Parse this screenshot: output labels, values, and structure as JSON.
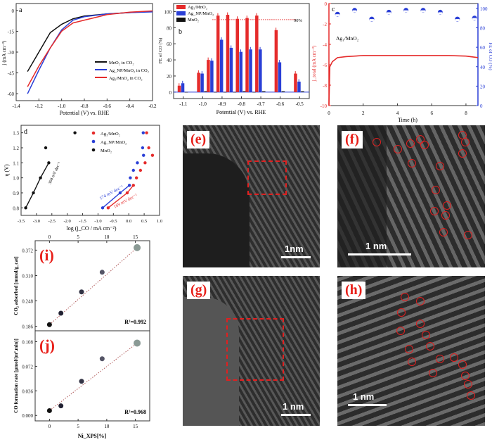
{
  "colors": {
    "ag1": "#e52b2b",
    "agnp": "#2a3fd6",
    "mno2": "#111111",
    "panel_label": "#e8201a"
  },
  "chart_data": [
    {
      "panel": "a",
      "type": "line",
      "xlabel": "Potential (V) vs. RHE",
      "ylabel": "j (mA cm⁻²)",
      "xlim": [
        -1.4,
        -0.2
      ],
      "ylim": [
        -65,
        5
      ],
      "xticks": [
        "-1.4",
        "-1.2",
        "-1.0",
        "-0.8",
        "-0.6",
        "-0.4",
        "-0.2"
      ],
      "yticks": [
        "0",
        "-15",
        "-30",
        "-45",
        "-60"
      ],
      "legend": "bottom-right",
      "series": [
        {
          "name": "MnO₂ in CO₂",
          "color": "#111111",
          "x": [
            -1.3,
            -1.2,
            -1.1,
            -1.0,
            -0.9,
            -0.8,
            -0.6,
            -0.4,
            -0.2
          ],
          "y": [
            -44,
            -30,
            -16,
            -10,
            -6,
            -4,
            -2.5,
            -1.5,
            -0.5
          ]
        },
        {
          "name": "Ag_NP/MnO₂ in CO₂",
          "color": "#2a3fd6",
          "x": [
            -1.3,
            -1.2,
            -1.1,
            -1.0,
            -0.9,
            -0.8,
            -0.6,
            -0.4,
            -0.2
          ],
          "y": [
            -60,
            -43,
            -27,
            -14,
            -7,
            -4.5,
            -2.5,
            -1.5,
            -1
          ]
        },
        {
          "name": "Ag₁/MnO₂ in CO₂",
          "color": "#e52b2b",
          "x": [
            -1.3,
            -1.2,
            -1.1,
            -1.0,
            -0.9,
            -0.8,
            -0.7,
            -0.6,
            -0.4,
            -0.2
          ],
          "y": [
            -55,
            -40,
            -27,
            -15,
            -9,
            -7,
            -5,
            -3,
            -1.2,
            -0.3
          ]
        }
      ]
    },
    {
      "panel": "b",
      "type": "bar",
      "xlabel": "Potential (V) vs. RHE",
      "ylabel": "FE of CO (%)",
      "xlim": [
        -1.15,
        -0.45
      ],
      "ylim": [
        -8,
        110
      ],
      "xticks": [
        "-1.1",
        "-1.0",
        "-0.9",
        "-0.8",
        "-0.7",
        "-0.6",
        "-0.5"
      ],
      "yticks": [
        "0",
        "20",
        "40",
        "60",
        "80",
        "100"
      ],
      "annotation": "90%",
      "legend": "top-left",
      "x": [
        -1.1,
        -1.0,
        -0.95,
        -0.9,
        -0.85,
        -0.8,
        -0.75,
        -0.7,
        -0.6,
        -0.5
      ],
      "series": [
        {
          "name": "Ag₁/MnO₂",
          "color": "#e52b2b",
          "values": [
            8,
            24,
            40,
            95,
            96,
            91,
            92,
            95,
            77,
            23
          ]
        },
        {
          "name": "Ag_NP/MnO₂",
          "color": "#2a3fd6",
          "values": [
            11,
            23,
            39,
            65,
            55,
            50,
            53,
            53,
            37,
            13
          ]
        },
        {
          "name": "MnO₂",
          "color": "#111111",
          "values": [
            0,
            1,
            0,
            0,
            0,
            1,
            0,
            1,
            1,
            1
          ]
        }
      ]
    },
    {
      "panel": "c",
      "type": "line",
      "xlabel": "Time (h)",
      "ylabel": "j_total (mA cm⁻²)",
      "ylabel2": "FE of CO (%)",
      "annotation": "Ag₁/MnO₂",
      "xlim": [
        0,
        8.7
      ],
      "ylim": [
        -10,
        0
      ],
      "ylim2": [
        0,
        105
      ],
      "xticks": [
        "0",
        "2",
        "4",
        "6",
        "8"
      ],
      "yticks": [
        "0",
        "-2",
        "-4",
        "-6",
        "-8",
        "-10"
      ],
      "yticks2": [
        "0",
        "20",
        "40",
        "60",
        "80",
        "100"
      ],
      "current": {
        "x": [
          0,
          0.05,
          0.2,
          0.5,
          1,
          2,
          4,
          6,
          7,
          8,
          8.7
        ],
        "y": [
          -10,
          -6.2,
          -5.7,
          -5.3,
          -5.2,
          -5.1,
          -5.1,
          -5.1,
          -5.1,
          -5.15,
          -5.3
        ]
      },
      "fe": {
        "x": [
          0.5,
          1.5,
          2.5,
          3.5,
          4.5,
          5.5,
          6.5,
          7.5,
          8.5
        ],
        "y": [
          94,
          98,
          89,
          96,
          98,
          98,
          96,
          89,
          90
        ]
      }
    },
    {
      "panel": "d",
      "type": "scatter",
      "xlabel": "log (j_CO / mA cm⁻²)",
      "ylabel": "η (V)",
      "xlim": [
        -3.5,
        1.0
      ],
      "ylim": [
        0.75,
        1.35
      ],
      "xticks": [
        "-3.5",
        "-3.0",
        "-2.5",
        "-2.0",
        "-1.5",
        "-1.0",
        "-0.5",
        "0.0",
        "0.5",
        "1.0"
      ],
      "yticks": [
        "0.8",
        "0.9",
        "1.0",
        "1.1",
        "1.2",
        "1.3"
      ],
      "legend": "top-right",
      "series": [
        {
          "name": "Ag₁/MnO₂",
          "color": "#e52b2b",
          "x": [
            -0.67,
            -0.05,
            0.15,
            0.25,
            0.38,
            0.53,
            0.77,
            0.65,
            0.58
          ],
          "y": [
            0.8,
            0.9,
            0.95,
            1.0,
            1.05,
            1.1,
            1.15,
            1.2,
            1.3
          ],
          "slope": "169 mV dec⁻¹"
        },
        {
          "name": "Ag_NP/MnO₂",
          "color": "#2a3fd6",
          "x": [
            -0.85,
            -0.28,
            0.02,
            0.05,
            0.15,
            0.28,
            0.48,
            0.45,
            0.47
          ],
          "y": [
            0.8,
            0.9,
            0.95,
            1.0,
            1.05,
            1.1,
            1.15,
            1.2,
            1.3
          ],
          "slope": "174 mV dec⁻¹"
        },
        {
          "name": "MnO₂",
          "color": "#111111",
          "x": [
            -3.35,
            -3.1,
            -2.87,
            -2.6,
            -2.7,
            -1.75
          ],
          "y": [
            0.8,
            0.9,
            1.0,
            1.1,
            1.2,
            1.3
          ],
          "slope": "304 mV dec⁻¹"
        }
      ]
    },
    {
      "panel": "(i)",
      "type": "scatter",
      "ylabel": "CO₂ adsorbed [mmol/g_cat]",
      "xlim": [
        -2.5,
        17.5
      ],
      "ylim": [
        0.175,
        0.395
      ],
      "xticks": [
        "0",
        "5",
        "10",
        "15"
      ],
      "yticks": [
        "0.186",
        "0.248",
        "0.310",
        "0.372"
      ],
      "x": [
        0,
        2,
        5.6,
        9.2,
        15.3
      ],
      "y": [
        0.19,
        0.218,
        0.27,
        0.318,
        0.378
      ],
      "r2": "R²=0.992"
    },
    {
      "panel": "(j)",
      "type": "scatter",
      "xlabel": "Ni_XPS[%]",
      "ylabel": "CO formation rate [μmol/(m².min)]",
      "xlim": [
        -2.5,
        17.5
      ],
      "ylim": [
        -0.008,
        0.124
      ],
      "xticks": [
        "0",
        "5",
        "10",
        "15"
      ],
      "yticks": [
        "0.000",
        "0.036",
        "0.072",
        "0.108"
      ],
      "x": [
        0,
        2,
        5.6,
        9.2,
        15.3
      ],
      "y": [
        0.007,
        0.014,
        0.05,
        0.083,
        0.106
      ],
      "r2": "R²=0.968"
    }
  ],
  "images": [
    {
      "label": "(e)",
      "scale": "1nm"
    },
    {
      "label": "(f)",
      "scale": "1 nm"
    },
    {
      "label": "(g)",
      "scale": "1 nm"
    },
    {
      "label": "(h)",
      "scale": "1 nm"
    }
  ]
}
